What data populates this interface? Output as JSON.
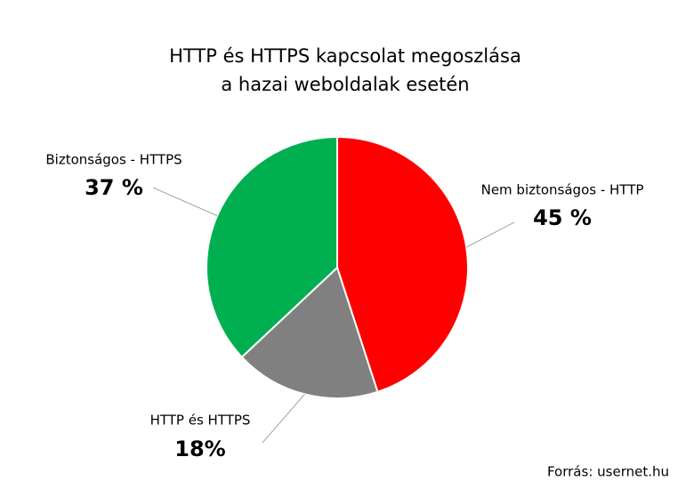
{
  "chart_data": {
    "type": "pie",
    "title": [
      "HTTP és HTTPS kapcsolat megoszlása",
      "a hazai weboldalak esetén"
    ],
    "categories": [
      "Nem biztonságos - HTTP",
      "HTTP és HTTPS",
      "Biztonságos - HTTPS"
    ],
    "values": [
      45,
      18,
      37
    ],
    "value_labels": [
      "45 %",
      "18%",
      "37 %"
    ],
    "colors": [
      "#ff0000",
      "#808080",
      "#00b050"
    ],
    "source": "Forrás: usernet.hu"
  }
}
